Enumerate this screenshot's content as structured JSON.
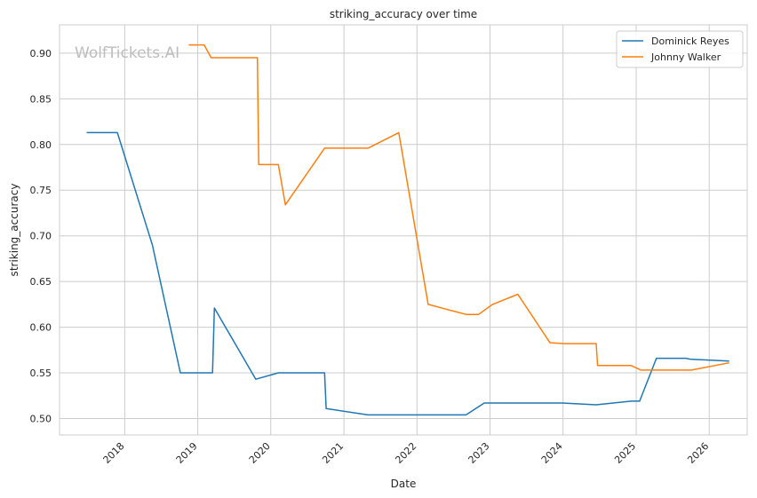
{
  "chart_data": {
    "type": "line",
    "title": "striking_accuracy over time",
    "xlabel": "Date",
    "ylabel": "striking_accuracy",
    "watermark": "WolfTickets.AI",
    "x_ticks": [
      "2018",
      "2019",
      "2020",
      "2021",
      "2022",
      "2023",
      "2024",
      "2025",
      "2026"
    ],
    "y_ticks": [
      "0.50",
      "0.55",
      "0.60",
      "0.65",
      "0.70",
      "0.75",
      "0.80",
      "0.85",
      "0.90"
    ],
    "xlim": [
      "2017-02-09",
      "2026-07-10"
    ],
    "ylim": [
      0.482,
      0.931
    ],
    "grid": true,
    "legend_position": "top-right",
    "series": [
      {
        "name": "Dominick Reyes",
        "color": "#1f77b4",
        "points": [
          [
            "2017-06-25",
            0.813
          ],
          [
            "2017-11-25",
            0.813
          ],
          [
            "2018-05-19",
            0.69
          ],
          [
            "2018-10-06",
            0.55
          ],
          [
            "2019-03-16",
            0.55
          ],
          [
            "2019-03-25",
            0.621
          ],
          [
            "2019-10-18",
            0.543
          ],
          [
            "2020-02-08",
            0.55
          ],
          [
            "2020-09-26",
            0.55
          ],
          [
            "2020-10-04",
            0.511
          ],
          [
            "2021-05-01",
            0.504
          ],
          [
            "2022-09-03",
            0.504
          ],
          [
            "2022-12-03",
            0.517
          ],
          [
            "2024-01-01",
            0.517
          ],
          [
            "2024-06-15",
            0.515
          ],
          [
            "2024-12-07",
            0.519
          ],
          [
            "2025-01-18",
            0.519
          ],
          [
            "2025-04-12",
            0.566
          ],
          [
            "2025-09-06",
            0.566
          ],
          [
            "2025-09-28",
            0.565
          ],
          [
            "2026-04-11",
            0.563
          ]
        ]
      },
      {
        "name": "Johnny Walker",
        "color": "#ff7f0e",
        "points": [
          [
            "2018-11-17",
            0.909
          ],
          [
            "2019-02-02",
            0.909
          ],
          [
            "2019-03-09",
            0.895
          ],
          [
            "2019-10-26",
            0.895
          ],
          [
            "2019-11-02",
            0.778
          ],
          [
            "2020-02-08",
            0.778
          ],
          [
            "2020-03-14",
            0.734
          ],
          [
            "2020-09-26",
            0.796
          ],
          [
            "2021-05-01",
            0.796
          ],
          [
            "2021-10-02",
            0.813
          ],
          [
            "2022-02-26",
            0.625
          ],
          [
            "2022-09-03",
            0.614
          ],
          [
            "2022-11-05",
            0.614
          ],
          [
            "2023-01-14",
            0.625
          ],
          [
            "2023-05-20",
            0.636
          ],
          [
            "2023-10-28",
            0.583
          ],
          [
            "2024-01-13",
            0.582
          ],
          [
            "2024-06-15",
            0.582
          ],
          [
            "2024-06-22",
            0.558
          ],
          [
            "2024-12-07",
            0.558
          ],
          [
            "2025-01-25",
            0.553
          ],
          [
            "2025-10-04",
            0.553
          ],
          [
            "2026-04-11",
            0.561
          ]
        ]
      }
    ]
  }
}
